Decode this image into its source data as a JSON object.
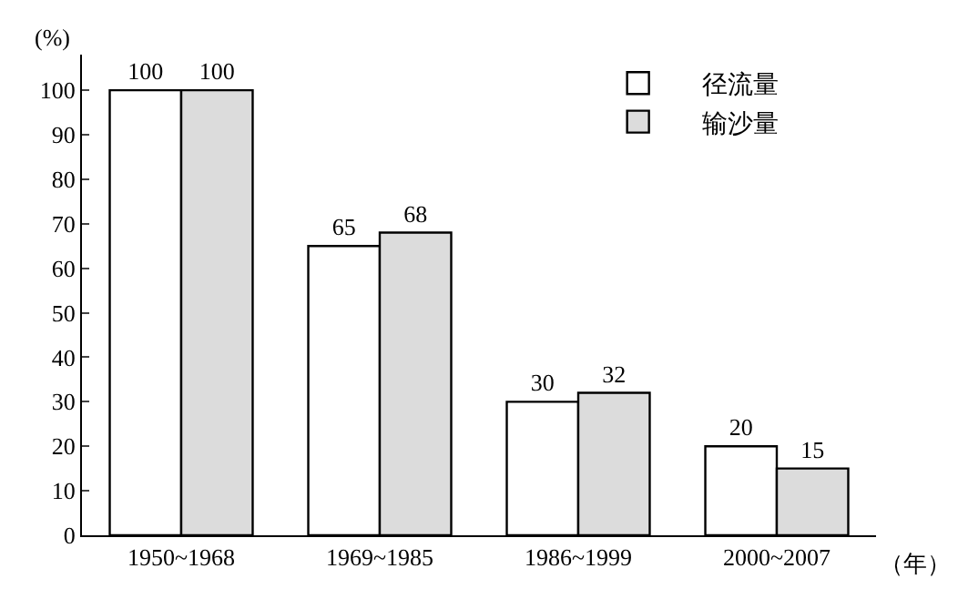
{
  "chart_data": {
    "type": "bar",
    "ylabel": "(%)",
    "xlabel": "（年）",
    "categories": [
      "1950~1968",
      "1969~1985",
      "1986~1999",
      "2000~2007"
    ],
    "series": [
      {
        "name": "径流量",
        "color": "#ffffff",
        "values": [
          100,
          65,
          30,
          20
        ]
      },
      {
        "name": "输沙量",
        "color": "#dcdcdc",
        "values": [
          100,
          68,
          32,
          15
        ]
      }
    ],
    "ylim": [
      0,
      108
    ],
    "yticks": [
      0,
      10,
      20,
      30,
      40,
      50,
      60,
      70,
      80,
      90,
      100
    ],
    "grid": false,
    "legend": "top right",
    "data_labels": true
  }
}
